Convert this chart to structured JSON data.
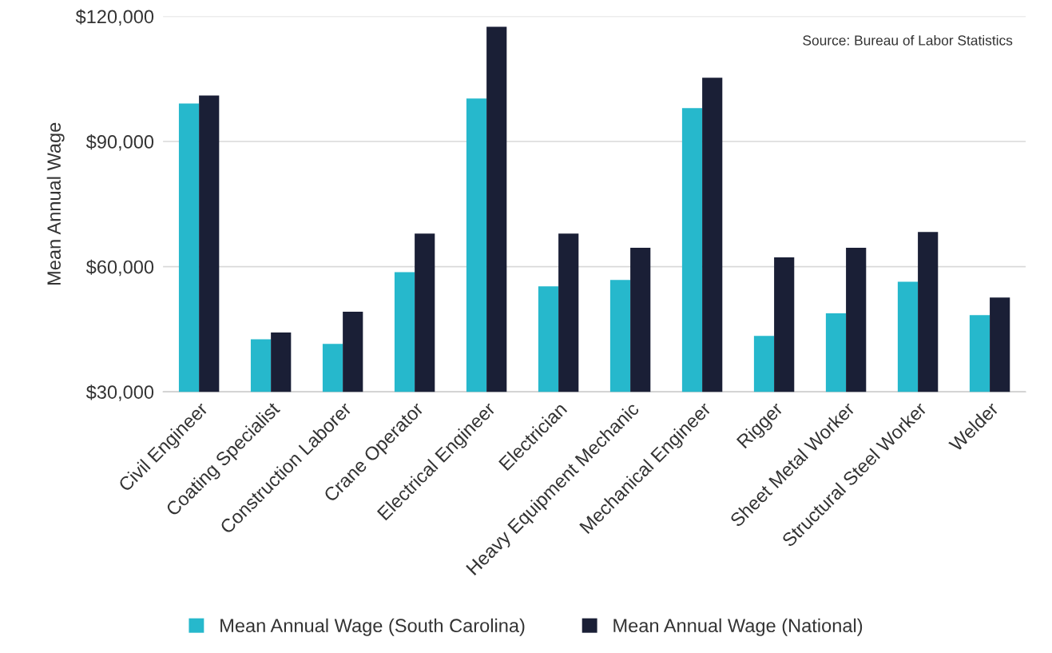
{
  "chart_data": {
    "type": "bar",
    "ylabel": "Mean Annual Wage",
    "categories": [
      "Civil Engineer",
      "Coating Specialist",
      "Construction Laborer",
      "Crane Operator",
      "Electrical Engineer",
      "Electrician",
      "Heavy Equipment Mechanic",
      "Mechanical Engineer",
      "Rigger",
      "Sheet Metal Worker",
      "Structural Steel Worker",
      "Welder"
    ],
    "series": [
      {
        "name": "Mean Annual Wage (South Carolina)",
        "color": "#26b8cc",
        "values": [
          99100,
          42600,
          41500,
          58700,
          100300,
          55300,
          56800,
          98000,
          43400,
          48800,
          56400,
          48400
        ]
      },
      {
        "name": "Mean Annual Wage (National)",
        "color": "#1a1f36",
        "values": [
          101000,
          44200,
          49200,
          67900,
          117500,
          67900,
          64500,
          105300,
          62200,
          64500,
          68300,
          52600
        ]
      }
    ],
    "ylim": [
      30000,
      120000
    ],
    "yticks": [
      {
        "value": 30000,
        "label": "$30,000"
      },
      {
        "value": 60000,
        "label": "$60,000"
      },
      {
        "value": 90000,
        "label": "$90,000"
      },
      {
        "value": 120000,
        "label": "$120,000"
      }
    ],
    "grid": "y",
    "legend": "bottom",
    "annotations": [
      "Source: Bureau of Labor Statistics"
    ]
  }
}
